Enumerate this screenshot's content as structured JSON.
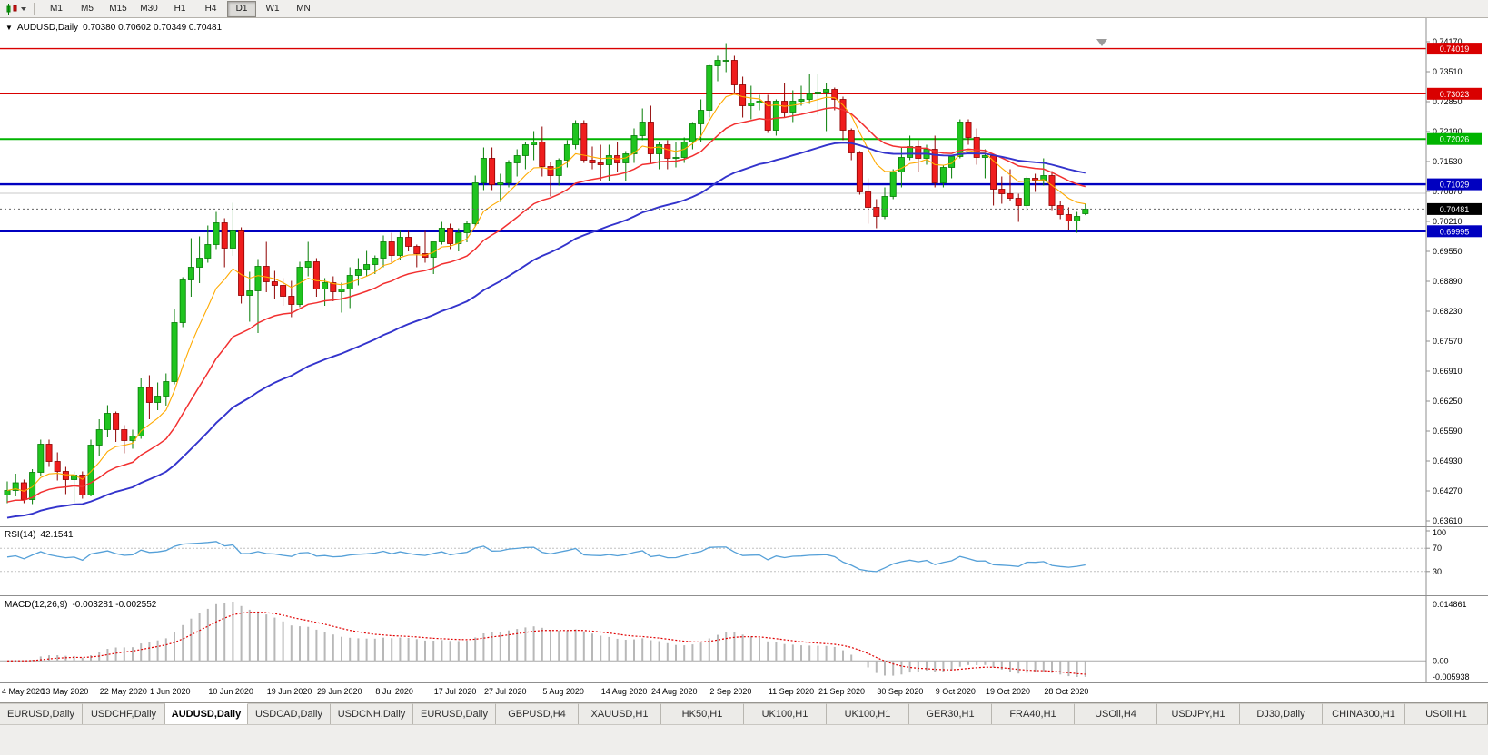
{
  "toolbar": {
    "timeframes": [
      "M1",
      "M5",
      "M15",
      "M30",
      "H1",
      "H4",
      "D1",
      "W1",
      "MN"
    ],
    "active_timeframe": "D1",
    "icons": [
      "candlestick-chart-icon",
      "dropdown-caret-icon"
    ]
  },
  "chart": {
    "dropdown_glyph": "▼",
    "symbol_label": "AUDUSD,Daily",
    "ohlc_label": "0.70380 0.70602 0.70349 0.70481"
  },
  "rsi": {
    "title_label": "RSI(14)",
    "value": "42.1541",
    "axis_labels": [
      "100",
      "70",
      "30"
    ],
    "axis_values": [
      100,
      70,
      30
    ],
    "dashed_levels": [
      70,
      30
    ]
  },
  "macd": {
    "title_label": "MACD(12,26,9)",
    "values": "-0.003281 -0.002552",
    "axis_labels": [
      "0.014861",
      "0.00",
      "-0.005938"
    ]
  },
  "tabs": {
    "active_index": 2,
    "items": [
      "EURUSD,Daily",
      "USDCHF,Daily",
      "AUDUSD,Daily",
      "USDCAD,Daily",
      "USDCNH,Daily",
      "EURUSD,Daily",
      "GBPUSD,H4",
      "XAUUSD,H1",
      "HK50,H1",
      "UK100,H1",
      "UK100,H1",
      "GER30,H1",
      "FRA40,H1",
      "USOil,H4",
      "USDJPY,H1",
      "DJ30,Daily",
      "CHINA300,H1",
      "USOil,H1"
    ]
  },
  "chart_data": {
    "type": "candlestick",
    "symbol": "AUDUSD",
    "timeframe": "Daily",
    "current_bar": {
      "open": 0.7038,
      "high": 0.70602,
      "low": 0.70349,
      "close": 0.70481
    },
    "price_axis_ticks": [
      "0.74170",
      "0.73510",
      "0.72850",
      "0.72190",
      "0.71530",
      "0.70870",
      "0.70210",
      "0.69550",
      "0.68890",
      "0.68230",
      "0.67570",
      "0.66910",
      "0.66250",
      "0.65590",
      "0.64930",
      "0.64270",
      "0.63610"
    ],
    "levels": [
      {
        "price": 0.74019,
        "label": "0.74019",
        "color": "#d90000",
        "width": 1.4
      },
      {
        "price": 0.73023,
        "label": "0.73023",
        "color": "#d90000",
        "width": 1.4
      },
      {
        "price": 0.72026,
        "label": "0.72026",
        "color": "#00b400",
        "width": 2
      },
      {
        "price": 0.71029,
        "label": "0.71029",
        "color": "#0000c0",
        "width": 2.4
      },
      {
        "price": 0.69995,
        "label": "0.69995",
        "color": "#0000c0",
        "width": 2.4
      }
    ],
    "current_price": {
      "value": 0.70481,
      "label": "0.70481"
    },
    "reference_line": 0.7083,
    "rsi_headline": 42.1541,
    "macd_headline": {
      "macd": -0.003281,
      "signal": -0.002552
    },
    "colors": {
      "candle_up": "#1fc41f",
      "candle_up_border": "#067d06",
      "candle_down": "#ef1d1d",
      "candle_down_border": "#8f0000",
      "ma_fast": "#ffaa00",
      "ma_mid": "#f23030",
      "ma_slow": "#3333cc",
      "rsi_line": "#55a0d8",
      "macd_hist": "#b8b8b8",
      "macd_signal": "#e00000"
    },
    "date_labels": [
      {
        "label": "4 May 2020",
        "candle": 0
      },
      {
        "label": "13 May 2020",
        "candle": 7
      },
      {
        "label": "22 May 2020",
        "candle": 14
      },
      {
        "label": "1 Jun 2020",
        "candle": 20
      },
      {
        "label": "10 Jun 2020",
        "candle": 27
      },
      {
        "label": "19 Jun 2020",
        "candle": 34
      },
      {
        "label": "29 Jun 2020",
        "candle": 40
      },
      {
        "label": "8 Jul 2020",
        "candle": 47
      },
      {
        "label": "17 Jul 2020",
        "candle": 54
      },
      {
        "label": "27 Jul 2020",
        "candle": 60
      },
      {
        "label": "5 Aug 2020",
        "candle": 67
      },
      {
        "label": "14 Aug 2020",
        "candle": 74
      },
      {
        "label": "24 Aug 2020",
        "candle": 80
      },
      {
        "label": "2 Sep 2020",
        "candle": 87
      },
      {
        "label": "11 Sep 2020",
        "candle": 94
      },
      {
        "label": "21 Sep 2020",
        "candle": 100
      },
      {
        "label": "30 Sep 2020",
        "candle": 107
      },
      {
        "label": "9 Oct 2020",
        "candle": 114
      },
      {
        "label": "19 Oct 2020",
        "candle": 120
      },
      {
        "label": "28 Oct 2020",
        "candle": 127
      }
    ],
    "candles_ohlc": [
      [
        0.6418,
        0.6448,
        0.64,
        0.6428
      ],
      [
        0.6428,
        0.6465,
        0.6415,
        0.6445
      ],
      [
        0.6445,
        0.6452,
        0.64,
        0.6408
      ],
      [
        0.6408,
        0.6475,
        0.6398,
        0.6468
      ],
      [
        0.6468,
        0.654,
        0.646,
        0.653
      ],
      [
        0.653,
        0.654,
        0.648,
        0.6492
      ],
      [
        0.6492,
        0.6512,
        0.645,
        0.647
      ],
      [
        0.647,
        0.648,
        0.642,
        0.6452
      ],
      [
        0.6452,
        0.647,
        0.6402,
        0.6462
      ],
      [
        0.6462,
        0.647,
        0.641,
        0.6418
      ],
      [
        0.6418,
        0.654,
        0.6415,
        0.6528
      ],
      [
        0.6528,
        0.6585,
        0.6505,
        0.6562
      ],
      [
        0.6562,
        0.6616,
        0.6545,
        0.6598
      ],
      [
        0.6598,
        0.6602,
        0.6535,
        0.6562
      ],
      [
        0.6562,
        0.6572,
        0.651,
        0.6538
      ],
      [
        0.6538,
        0.6562,
        0.652,
        0.6548
      ],
      [
        0.6548,
        0.6675,
        0.6542,
        0.6655
      ],
      [
        0.6655,
        0.6682,
        0.6585,
        0.6622
      ],
      [
        0.6622,
        0.6666,
        0.6605,
        0.6636
      ],
      [
        0.6636,
        0.6686,
        0.6615,
        0.6668
      ],
      [
        0.6668,
        0.6828,
        0.6662,
        0.6798
      ],
      [
        0.6798,
        0.6898,
        0.6788,
        0.6892
      ],
      [
        0.6892,
        0.6984,
        0.6855,
        0.692
      ],
      [
        0.692,
        0.6988,
        0.6885,
        0.694
      ],
      [
        0.694,
        0.7012,
        0.693,
        0.697
      ],
      [
        0.697,
        0.7042,
        0.696,
        0.7018
      ],
      [
        0.7018,
        0.7028,
        0.692,
        0.6962
      ],
      [
        0.6962,
        0.7062,
        0.6945,
        0.7
      ],
      [
        0.7,
        0.7008,
        0.684,
        0.6858
      ],
      [
        0.6858,
        0.691,
        0.68,
        0.6868
      ],
      [
        0.6868,
        0.6938,
        0.6775,
        0.6922
      ],
      [
        0.6922,
        0.6976,
        0.6865,
        0.6888
      ],
      [
        0.6888,
        0.6912,
        0.685,
        0.688
      ],
      [
        0.688,
        0.6896,
        0.6835,
        0.6856
      ],
      [
        0.6856,
        0.689,
        0.681,
        0.6838
      ],
      [
        0.6838,
        0.6932,
        0.6832,
        0.692
      ],
      [
        0.692,
        0.6976,
        0.69,
        0.6932
      ],
      [
        0.6932,
        0.694,
        0.6855,
        0.6872
      ],
      [
        0.6872,
        0.6896,
        0.6835,
        0.6886
      ],
      [
        0.6886,
        0.69,
        0.6845,
        0.6866
      ],
      [
        0.6866,
        0.6886,
        0.682,
        0.6872
      ],
      [
        0.6872,
        0.692,
        0.683,
        0.6902
      ],
      [
        0.6902,
        0.694,
        0.688,
        0.6916
      ],
      [
        0.6916,
        0.6956,
        0.69,
        0.6926
      ],
      [
        0.6926,
        0.6946,
        0.6905,
        0.694
      ],
      [
        0.694,
        0.699,
        0.692,
        0.6976
      ],
      [
        0.6976,
        0.6996,
        0.693,
        0.6946
      ],
      [
        0.6946,
        0.7,
        0.6935,
        0.6986
      ],
      [
        0.6986,
        0.7,
        0.6955,
        0.6966
      ],
      [
        0.6966,
        0.697,
        0.692,
        0.695
      ],
      [
        0.695,
        0.7,
        0.693,
        0.6942
      ],
      [
        0.6942,
        0.6976,
        0.6905,
        0.6976
      ],
      [
        0.6976,
        0.702,
        0.697,
        0.7006
      ],
      [
        0.7006,
        0.7016,
        0.696,
        0.6972
      ],
      [
        0.6972,
        0.7006,
        0.6955,
        0.6996
      ],
      [
        0.6996,
        0.7022,
        0.6975,
        0.7016
      ],
      [
        0.7016,
        0.7122,
        0.701,
        0.7106
      ],
      [
        0.7106,
        0.7184,
        0.709,
        0.716
      ],
      [
        0.716,
        0.7184,
        0.709,
        0.7102
      ],
      [
        0.7102,
        0.7126,
        0.7064,
        0.7106
      ],
      [
        0.7106,
        0.7156,
        0.7096,
        0.715
      ],
      [
        0.715,
        0.718,
        0.712,
        0.7166
      ],
      [
        0.7166,
        0.7196,
        0.7136,
        0.719
      ],
      [
        0.719,
        0.722,
        0.7156,
        0.7196
      ],
      [
        0.7196,
        0.723,
        0.712,
        0.7142
      ],
      [
        0.7142,
        0.7152,
        0.7076,
        0.7122
      ],
      [
        0.7122,
        0.716,
        0.71,
        0.7156
      ],
      [
        0.7156,
        0.72,
        0.714,
        0.719
      ],
      [
        0.719,
        0.7244,
        0.718,
        0.7236
      ],
      [
        0.7236,
        0.7244,
        0.715,
        0.7156
      ],
      [
        0.7156,
        0.7186,
        0.7136,
        0.715
      ],
      [
        0.715,
        0.719,
        0.711,
        0.7146
      ],
      [
        0.7146,
        0.719,
        0.711,
        0.7166
      ],
      [
        0.7166,
        0.7196,
        0.713,
        0.715
      ],
      [
        0.715,
        0.7176,
        0.711,
        0.717
      ],
      [
        0.717,
        0.7226,
        0.715,
        0.721
      ],
      [
        0.721,
        0.727,
        0.72,
        0.724
      ],
      [
        0.724,
        0.7276,
        0.715,
        0.717
      ],
      [
        0.717,
        0.7196,
        0.7136,
        0.719
      ],
      [
        0.719,
        0.72,
        0.7136,
        0.716
      ],
      [
        0.716,
        0.7196,
        0.714,
        0.7162
      ],
      [
        0.7162,
        0.7206,
        0.715,
        0.7196
      ],
      [
        0.7196,
        0.724,
        0.718,
        0.7236
      ],
      [
        0.7236,
        0.729,
        0.7196,
        0.7266
      ],
      [
        0.7266,
        0.7366,
        0.725,
        0.7364
      ],
      [
        0.7364,
        0.7386,
        0.733,
        0.7376
      ],
      [
        0.7376,
        0.7414,
        0.735,
        0.7376
      ],
      [
        0.7376,
        0.7386,
        0.73,
        0.7322
      ],
      [
        0.7322,
        0.734,
        0.725,
        0.7276
      ],
      [
        0.7276,
        0.732,
        0.7246,
        0.7282
      ],
      [
        0.7282,
        0.73,
        0.7266,
        0.7286
      ],
      [
        0.7286,
        0.73,
        0.7216,
        0.7222
      ],
      [
        0.7222,
        0.729,
        0.721,
        0.7286
      ],
      [
        0.7286,
        0.7326,
        0.725,
        0.7262
      ],
      [
        0.7262,
        0.731,
        0.724,
        0.7286
      ],
      [
        0.7286,
        0.732,
        0.7276,
        0.729
      ],
      [
        0.729,
        0.7346,
        0.728,
        0.7302
      ],
      [
        0.7302,
        0.7346,
        0.7256,
        0.7306
      ],
      [
        0.7306,
        0.7326,
        0.722,
        0.7312
      ],
      [
        0.7312,
        0.7316,
        0.7266,
        0.729
      ],
      [
        0.729,
        0.7296,
        0.72,
        0.7222
      ],
      [
        0.7222,
        0.7226,
        0.7156,
        0.7172
      ],
      [
        0.7172,
        0.7176,
        0.708,
        0.7086
      ],
      [
        0.7086,
        0.7116,
        0.7016,
        0.7052
      ],
      [
        0.7052,
        0.707,
        0.7006,
        0.7032
      ],
      [
        0.7032,
        0.7096,
        0.7026,
        0.7076
      ],
      [
        0.7076,
        0.7136,
        0.707,
        0.713
      ],
      [
        0.713,
        0.7186,
        0.7096,
        0.7162
      ],
      [
        0.7162,
        0.721,
        0.7156,
        0.7186
      ],
      [
        0.7186,
        0.72,
        0.713,
        0.716
      ],
      [
        0.716,
        0.719,
        0.7146,
        0.718
      ],
      [
        0.718,
        0.721,
        0.7096,
        0.7106
      ],
      [
        0.7106,
        0.7146,
        0.7096,
        0.714
      ],
      [
        0.714,
        0.7166,
        0.7116,
        0.7164
      ],
      [
        0.7164,
        0.7246,
        0.716,
        0.724
      ],
      [
        0.724,
        0.7246,
        0.719,
        0.7206
      ],
      [
        0.7206,
        0.7226,
        0.7146,
        0.7162
      ],
      [
        0.7162,
        0.718,
        0.7116,
        0.7166
      ],
      [
        0.7166,
        0.717,
        0.7056,
        0.7092
      ],
      [
        0.7092,
        0.712,
        0.706,
        0.7082
      ],
      [
        0.7082,
        0.7136,
        0.7066,
        0.7072
      ],
      [
        0.7072,
        0.7082,
        0.702,
        0.7056
      ],
      [
        0.7056,
        0.712,
        0.7046,
        0.7116
      ],
      [
        0.7116,
        0.7126,
        0.7086,
        0.7112
      ],
      [
        0.7112,
        0.716,
        0.71,
        0.7122
      ],
      [
        0.7122,
        0.7132,
        0.7046,
        0.7056
      ],
      [
        0.7056,
        0.7066,
        0.7026,
        0.7036
      ],
      [
        0.7036,
        0.7052,
        0.7002,
        0.7022
      ],
      [
        0.7022,
        0.7042,
        0.6996,
        0.7032
      ],
      [
        0.7038,
        0.70602,
        0.70349,
        0.70481
      ]
    ]
  }
}
